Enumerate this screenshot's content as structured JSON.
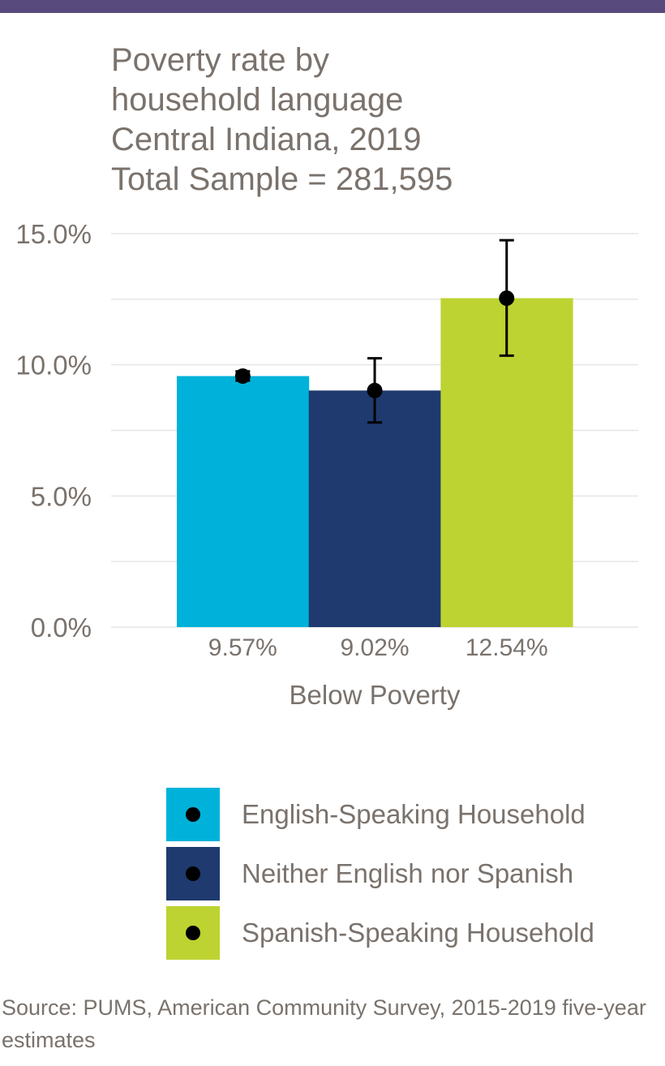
{
  "colors": {
    "top_bar": "#584a7d",
    "text": "#7a726c",
    "grid": "#e6e6e6",
    "error_bar": "#000000"
  },
  "chart_data": {
    "type": "bar",
    "title_lines": [
      "Poverty rate by",
      "household language",
      "Central Indiana, 2019",
      "Total Sample = 281,595"
    ],
    "xlabel": "Below Poverty",
    "ylabel": "",
    "ylim": [
      0,
      0.15
    ],
    "yticks": [
      0,
      0.05,
      0.1,
      0.15
    ],
    "ytick_labels": [
      "0.0%",
      "5.0%",
      "10.0%",
      "15.0%"
    ],
    "grid": true,
    "legend_position": "bottom",
    "categories": [
      "Below Poverty"
    ],
    "series": [
      {
        "name": "English-Speaking Household",
        "value": 0.0957,
        "label": "9.57%",
        "error_low": 0.094,
        "error_high": 0.0975,
        "color": "#00b2d9"
      },
      {
        "name": "Neither English nor Spanish",
        "value": 0.0902,
        "label": "9.02%",
        "error_low": 0.078,
        "error_high": 0.1025,
        "color": "#1f3a6e"
      },
      {
        "name": "Spanish-Speaking Household",
        "value": 0.1254,
        "label": "12.54%",
        "error_low": 0.1035,
        "error_high": 0.1475,
        "color": "#bdd331"
      }
    ]
  },
  "source_text": "Source: PUMS, American Community Survey, 2015-2019 five-year estimates"
}
